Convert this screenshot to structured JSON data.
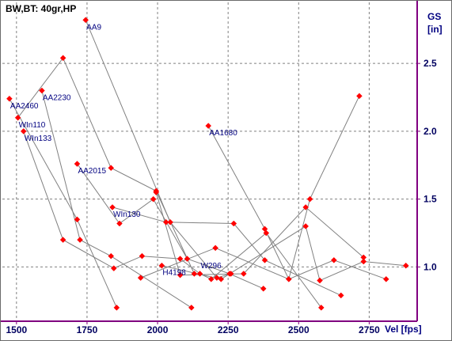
{
  "chart_data": {
    "type": "scatter",
    "title": "BW,BT:  40gr,HP",
    "ylabel_line1": "GS",
    "ylabel_line2": "[in]",
    "xlabel": "Vel [fps]",
    "xlim": [
      1450,
      2920
    ],
    "ylim": [
      0.6,
      2.95
    ],
    "x_ticks": [
      1500,
      1750,
      2000,
      2250,
      2500,
      2750
    ],
    "y_ticks": [
      1.0,
      1.5,
      2.0,
      2.5
    ],
    "y_tick_labels": [
      "1.0",
      "1.5",
      "2.0",
      "2.5"
    ],
    "grid": true,
    "marker_color": "#ff0000",
    "line_color": "#808080",
    "grid_color": "#808080",
    "axis_color": "#800080",
    "series": [
      {
        "name": "AA9",
        "x": [
          1745,
          2045,
          2210,
          2260
        ],
        "y": [
          2.82,
          1.33,
          0.92,
          0.95
        ]
      },
      {
        "name": "AA2460",
        "x": [
          1475,
          1715,
          1855
        ],
        "y": [
          2.24,
          1.35,
          0.7
        ]
      },
      {
        "name": "AA2230",
        "x": [
          1590,
          1725,
          1835,
          2120
        ],
        "y": [
          2.3,
          1.2,
          1.08,
          0.7
        ]
      },
      {
        "name": "WIn110",
        "x": [
          1505,
          1665,
          1835,
          1995,
          2130
        ],
        "y": [
          2.1,
          2.54,
          1.73,
          1.56,
          0.95
        ]
      },
      {
        "name": "WIn133",
        "x": [
          1525,
          1665,
          1845,
          1945,
          2080,
          2150,
          2190,
          2385,
          2580
        ],
        "y": [
          2.0,
          1.2,
          0.99,
          1.08,
          1.06,
          0.95,
          0.91,
          1.25,
          0.7
        ]
      },
      {
        "name": "AA2015",
        "x": [
          1715,
          1865,
          1985,
          2105,
          2255,
          2375
        ],
        "y": [
          1.76,
          1.32,
          1.5,
          1.06,
          0.95,
          0.84
        ]
      },
      {
        "name": "WIn130",
        "x": [
          1840,
          2030,
          2270,
          2380,
          2650
        ],
        "y": [
          1.44,
          1.33,
          1.32,
          1.05,
          0.79
        ]
      },
      {
        "name": "AA1680",
        "x": [
          2180,
          2380,
          2465,
          2540,
          2715
        ],
        "y": [
          2.04,
          1.28,
          0.91,
          1.5,
          2.26
        ]
      },
      {
        "name": "W296",
        "x": [
          1940,
          2205,
          2465,
          2625,
          2810
        ],
        "y": [
          0.92,
          1.14,
          0.91,
          1.05,
          0.91
        ]
      },
      {
        "name": "H4198",
        "x": [
          2015,
          2225,
          2525,
          2575,
          2730,
          2880
        ],
        "y": [
          1.01,
          0.91,
          1.3,
          0.9,
          1.04,
          1.01
        ]
      },
      {
        "name": "",
        "x": [
          1995,
          2080,
          2305,
          2525,
          2730
        ],
        "y": [
          1.55,
          0.94,
          0.95,
          1.44,
          1.07
        ]
      }
    ],
    "labels": [
      {
        "text": "AA9",
        "x": 1745,
        "y": 2.82
      },
      {
        "text": "AA2460",
        "x": 1475,
        "y": 2.24
      },
      {
        "text": "AA2230",
        "x": 1590,
        "y": 2.3
      },
      {
        "text": "WIn110",
        "x": 1505,
        "y": 2.1
      },
      {
        "text": "WIn133",
        "x": 1525,
        "y": 2.0
      },
      {
        "text": "AA2015",
        "x": 1715,
        "y": 1.76
      },
      {
        "text": "WIn130",
        "x": 1840,
        "y": 1.44
      },
      {
        "text": "AA1680",
        "x": 2180,
        "y": 2.04
      },
      {
        "text": "W296",
        "x": 2150,
        "y": 1.06
      },
      {
        "text": "H4198",
        "x": 2015,
        "y": 1.01
      }
    ]
  }
}
